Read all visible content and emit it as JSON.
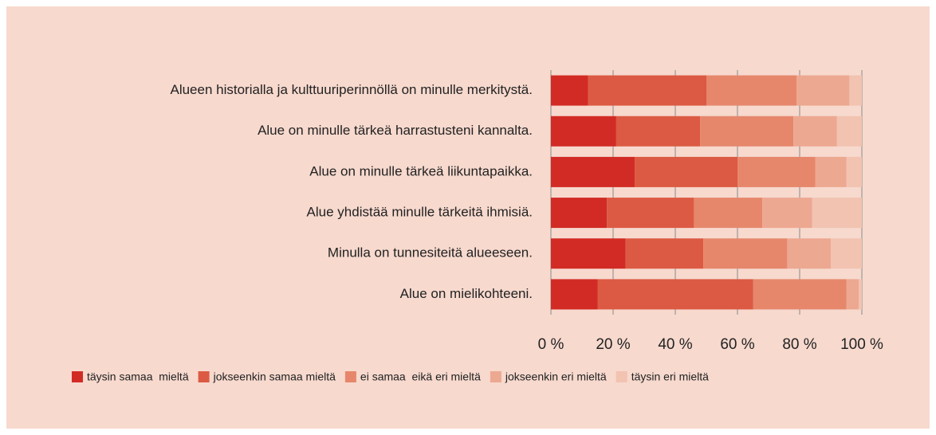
{
  "chart_data": {
    "type": "stacked_barh",
    "categories": [
      "Alueen historialla ja kulttuuriperinnöllä on minulle merkitystä.",
      "Alue on minulle tärkeä harrastusteni kannalta.",
      "Alue on minulle tärkeä liikuntapaikka.",
      "Alue yhdistää minulle tärkeitä ihmisiä.",
      "Minulla on tunnesiteitä alueeseen.",
      "Alue on mielikohteeni."
    ],
    "series": [
      {
        "name": "täysin samaa  mieltä",
        "color": "#d22b25",
        "values": [
          12,
          21,
          27,
          18,
          24,
          15
        ]
      },
      {
        "name": "jokseenkin samaa mieltä",
        "color": "#dc5a43",
        "values": [
          38,
          27,
          33,
          28,
          25,
          50
        ]
      },
      {
        "name": "ei samaa  eikä eri mieltä",
        "color": "#e6876c",
        "values": [
          29,
          30,
          25,
          22,
          27,
          30
        ]
      },
      {
        "name": "jokseenkin eri mieltä",
        "color": "#eda891",
        "values": [
          17,
          14,
          10,
          16,
          14,
          4
        ]
      },
      {
        "name": "täysin eri mieltä",
        "color": "#f2c3b1",
        "values": [
          4,
          8,
          5,
          16,
          10,
          1
        ]
      }
    ],
    "xlim": [
      0,
      100
    ],
    "xticks": [
      {
        "value": 0,
        "label": "0 %"
      },
      {
        "value": 20,
        "label": "20 %"
      },
      {
        "value": 40,
        "label": "40 %"
      },
      {
        "value": 60,
        "label": "60 %"
      },
      {
        "value": 80,
        "label": "80 %"
      },
      {
        "value": 100,
        "label": "100 %"
      }
    ],
    "grid": true
  }
}
